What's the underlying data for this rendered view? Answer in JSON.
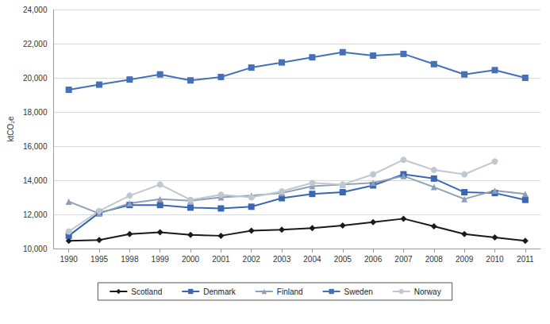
{
  "chart_data": {
    "type": "line",
    "y_label": "ktCO₂e",
    "categories": [
      "1990",
      "1995",
      "1998",
      "1999",
      "2000",
      "2001",
      "2002",
      "2003",
      "2004",
      "2005",
      "2006",
      "2007",
      "2008",
      "2009",
      "2010",
      "2011"
    ],
    "series": [
      {
        "name": "Scotland",
        "color": "#1a1a1a",
        "marker": "diamond",
        "values": [
          10450,
          10500,
          10850,
          10950,
          10800,
          10750,
          11050,
          11100,
          11200,
          11350,
          11550,
          11750,
          11300,
          10850,
          10650,
          10450
        ]
      },
      {
        "name": "Denmark",
        "color": "#3a66b3",
        "marker": "square",
        "values": [
          10750,
          12100,
          12550,
          12550,
          12400,
          12350,
          12450,
          12950,
          13200,
          13300,
          13700,
          14350,
          14100,
          13300,
          13250,
          12850
        ]
      },
      {
        "name": "Finland",
        "color": "#8d9fb8",
        "marker": "triangle",
        "values": [
          12750,
          12050,
          12650,
          12900,
          12800,
          13000,
          13100,
          13250,
          13650,
          13750,
          13850,
          14250,
          13600,
          12900,
          13400,
          13200
        ]
      },
      {
        "name": "Sweden",
        "color": "#4470b8",
        "marker": "square",
        "values": [
          19300,
          19600,
          19900,
          20200,
          19850,
          20050,
          20600,
          20900,
          21200,
          21500,
          21300,
          21400,
          20800,
          20200,
          20450,
          20000
        ]
      },
      {
        "name": "Norway",
        "color": "#bfc7d1",
        "marker": "circle",
        "values": [
          11000,
          12200,
          13100,
          13750,
          12850,
          13150,
          13000,
          13350,
          13850,
          13750,
          14350,
          15200,
          14600,
          14350,
          15100,
          null
        ]
      }
    ],
    "ylim": [
      10000,
      24000
    ],
    "yticks": [
      {
        "value": 10000,
        "label": "10,000"
      },
      {
        "value": 12000,
        "label": "12,000"
      },
      {
        "value": 14000,
        "label": "14,000"
      },
      {
        "value": 16000,
        "label": "16,000"
      },
      {
        "value": 18000,
        "label": "18,000"
      },
      {
        "value": 20000,
        "label": "20,000"
      },
      {
        "value": 22000,
        "label": "22,000"
      },
      {
        "value": 24000,
        "label": "24,000"
      }
    ],
    "grid": true,
    "legend": "bottom"
  }
}
